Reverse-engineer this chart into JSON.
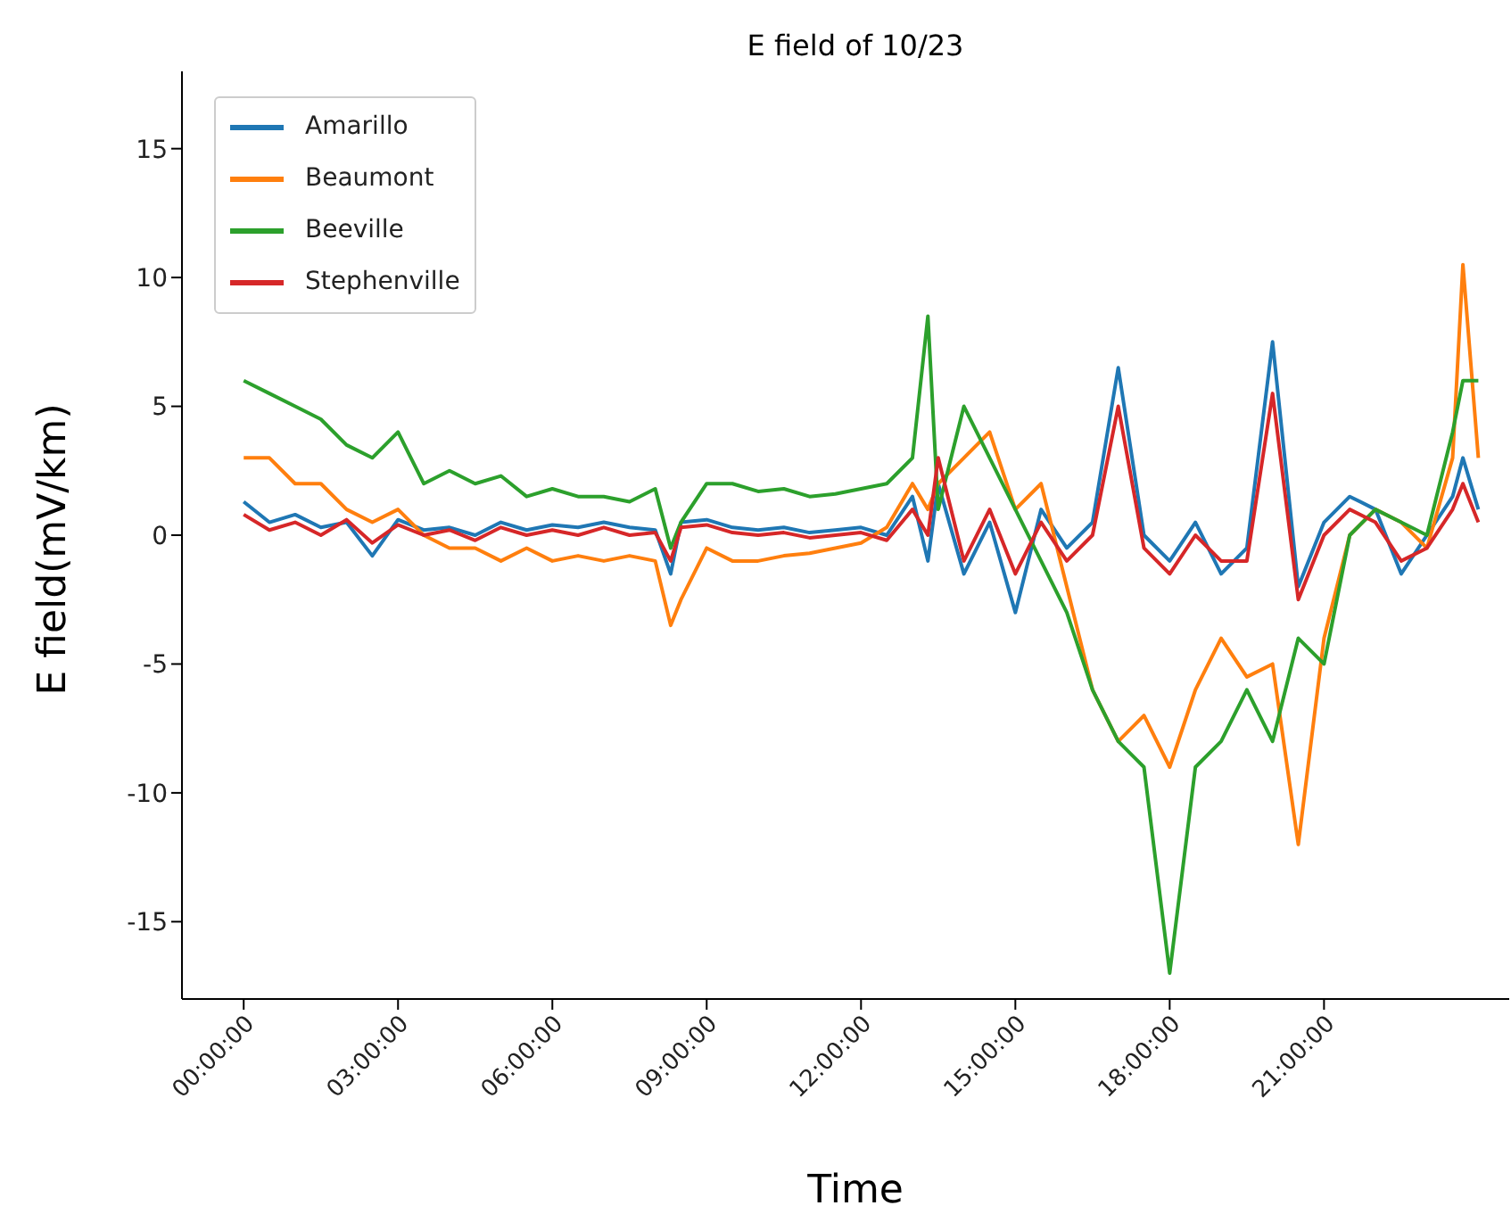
{
  "chart_data": {
    "type": "line",
    "title": "E field of 10/23",
    "xlabel": "Time",
    "ylabel": "E field(mV/km)",
    "x": [
      0,
      0.5,
      1,
      1.5,
      2,
      2.5,
      3,
      3.5,
      4,
      4.5,
      5,
      5.5,
      6,
      6.5,
      7,
      7.5,
      8,
      8.3,
      8.5,
      9,
      9.5,
      10,
      10.5,
      11,
      11.5,
      12,
      12.5,
      13,
      13.3,
      13.5,
      14,
      14.5,
      15,
      15.5,
      16,
      16.5,
      17,
      17.5,
      18,
      18.5,
      19,
      19.5,
      20,
      20.5,
      21,
      21.5,
      22,
      22.5,
      23,
      23.5,
      23.7,
      24
    ],
    "series": [
      {
        "name": "Amarillo",
        "color": "#1f77b4",
        "values": [
          1.3,
          0.5,
          0.8,
          0.3,
          0.5,
          -0.8,
          0.6,
          0.2,
          0.3,
          0,
          0.5,
          0.2,
          0.4,
          0.3,
          0.5,
          0.3,
          0.2,
          -1.5,
          0.5,
          0.6,
          0.3,
          0.2,
          0.3,
          0.1,
          0.2,
          0.3,
          0,
          1.5,
          -1.0,
          2.0,
          -1.5,
          0.5,
          -3.0,
          1.0,
          -0.5,
          0.5,
          6.5,
          0,
          -1.0,
          0.5,
          -1.5,
          -0.5,
          7.5,
          -2.0,
          0.5,
          1.5,
          1.0,
          -1.5,
          0,
          1.5,
          3.0,
          1.0
        ]
      },
      {
        "name": "Beaumont",
        "color": "#ff7f0e",
        "values": [
          3.0,
          3.0,
          2.0,
          2.0,
          1.0,
          0.5,
          1.0,
          0,
          -0.5,
          -0.5,
          -1.0,
          -0.5,
          -1.0,
          -0.8,
          -1.0,
          -0.8,
          -1.0,
          -3.5,
          -2.5,
          -0.5,
          -1.0,
          -1.0,
          -0.8,
          -0.7,
          -0.5,
          -0.3,
          0.3,
          2.0,
          1.0,
          2.0,
          3.0,
          4.0,
          1.0,
          2.0,
          -2.0,
          -6.0,
          -8.0,
          -7.0,
          -9.0,
          -6.0,
          -4.0,
          -5.5,
          -5.0,
          -12.0,
          -4.0,
          0,
          1.0,
          0.5,
          -0.5,
          3.0,
          10.5,
          3.0
        ]
      },
      {
        "name": "Beeville",
        "color": "#2ca02c",
        "values": [
          6.0,
          5.5,
          5.0,
          4.5,
          3.5,
          3.0,
          4.0,
          2.0,
          2.5,
          2.0,
          2.3,
          1.5,
          1.8,
          1.5,
          1.5,
          1.3,
          1.8,
          -0.5,
          0.5,
          2.0,
          2.0,
          1.7,
          1.8,
          1.5,
          1.6,
          1.8,
          2.0,
          3.0,
          8.5,
          1.0,
          5.0,
          3.0,
          1.0,
          -1.0,
          -3.0,
          -6.0,
          -8.0,
          -9.0,
          -17.0,
          -9.0,
          -8.0,
          -6.0,
          -8.0,
          -4.0,
          -5.0,
          0,
          1.0,
          0.5,
          0,
          4.0,
          6.0,
          6.0
        ]
      },
      {
        "name": "Stephenville",
        "color": "#d62728",
        "values": [
          0.8,
          0.2,
          0.5,
          0,
          0.6,
          -0.3,
          0.4,
          0,
          0.2,
          -0.2,
          0.3,
          0,
          0.2,
          0,
          0.3,
          0,
          0.1,
          -1.0,
          0.3,
          0.4,
          0.1,
          0,
          0.1,
          -0.1,
          0,
          0.1,
          -0.2,
          1.0,
          0,
          3.0,
          -1.0,
          1.0,
          -1.5,
          0.5,
          -1.0,
          0,
          5.0,
          -0.5,
          -1.5,
          0,
          -1.0,
          -1.0,
          5.5,
          -2.5,
          0,
          1.0,
          0.5,
          -1.0,
          -0.5,
          1.0,
          2.0,
          0.5
        ]
      }
    ],
    "xlim": [
      -1.2,
      24.6
    ],
    "xticks": [
      {
        "value": 0,
        "label": "00:00:00"
      },
      {
        "value": 3,
        "label": "03:00:00"
      },
      {
        "value": 6,
        "label": "06:00:00"
      },
      {
        "value": 9,
        "label": "09:00:00"
      },
      {
        "value": 12,
        "label": "12:00:00"
      },
      {
        "value": 15,
        "label": "15:00:00"
      },
      {
        "value": 18,
        "label": "18:00:00"
      },
      {
        "value": 21,
        "label": "21:00:00"
      }
    ],
    "ylim": [
      -18,
      18
    ],
    "yticks": [
      -15,
      -10,
      -5,
      0,
      5,
      10,
      15
    ],
    "legend": "top left",
    "grid": false,
    "marker": "none",
    "line_style": "solid"
  }
}
